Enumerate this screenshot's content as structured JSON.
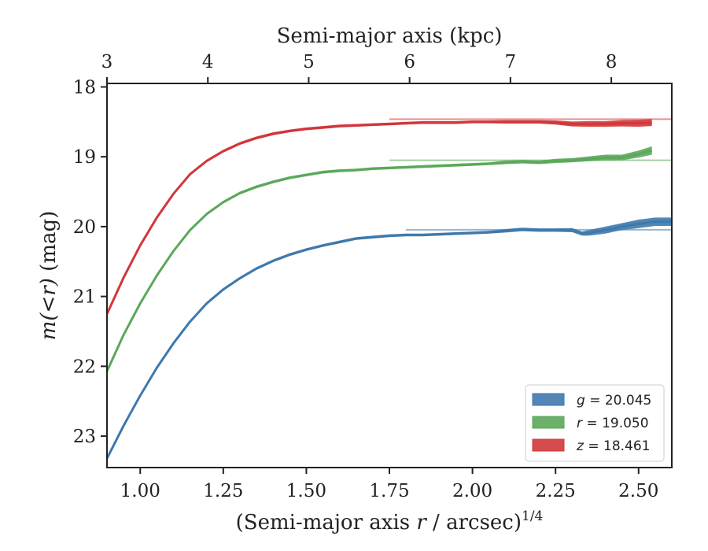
{
  "chart_data": {
    "type": "line",
    "xlabel": "(Semi-major axis r / arcsec)^{1/4}",
    "xlabel_parts": {
      "pre": "(Semi-major axis ",
      "var": "r",
      "mid": " / arcsec)",
      "sup": "1/4"
    },
    "ylabel": "m(<r) (mag)",
    "ylabel_parts": {
      "math": "m(<r)",
      "unit": " (mag)"
    },
    "top_xlabel": "Semi-major axis (kpc)",
    "xlim": [
      0.9,
      2.6
    ],
    "ylim": [
      23.45,
      17.95
    ],
    "y_inverted": true,
    "xticks": [
      1.0,
      1.25,
      1.5,
      1.75,
      2.0,
      2.25,
      2.5
    ],
    "xtick_labels": [
      "1.00",
      "1.25",
      "1.50",
      "1.75",
      "2.00",
      "2.25",
      "2.50"
    ],
    "yticks": [
      18,
      19,
      20,
      21,
      22,
      23
    ],
    "ytick_labels": [
      "18",
      "19",
      "20",
      "21",
      "22",
      "23"
    ],
    "top_ticks_kpc": [
      3,
      4,
      5,
      6,
      7,
      8
    ],
    "top_tick_labels": [
      "3",
      "4",
      "5",
      "6",
      "7",
      "8"
    ],
    "top_kpc_at_x": {
      "x": [
        0.9,
        2.6
      ],
      "kpc": [
        3.0,
        8.6
      ]
    },
    "legend_position": "lower-right",
    "grid": false,
    "series": [
      {
        "name": "g = 20.045",
        "var": "g",
        "value": "20.045",
        "color": "#3e79ad",
        "asymptote": 20.045,
        "x": [
          0.9,
          0.95,
          1.0,
          1.05,
          1.1,
          1.15,
          1.2,
          1.25,
          1.3,
          1.35,
          1.4,
          1.45,
          1.5,
          1.55,
          1.6,
          1.65,
          1.7,
          1.75,
          1.8,
          1.85,
          1.9,
          1.95,
          2.0,
          2.05,
          2.1,
          2.15,
          2.2,
          2.25,
          2.3,
          2.33,
          2.35,
          2.4,
          2.45,
          2.5,
          2.55,
          2.6
        ],
        "y": [
          23.32,
          22.85,
          22.42,
          22.02,
          21.67,
          21.36,
          21.1,
          20.9,
          20.74,
          20.6,
          20.49,
          20.4,
          20.33,
          20.27,
          20.22,
          20.17,
          20.15,
          20.13,
          20.12,
          20.12,
          20.11,
          20.1,
          20.09,
          20.08,
          20.06,
          20.04,
          20.05,
          20.05,
          20.05,
          20.1,
          20.09,
          20.05,
          20.0,
          19.96,
          19.93,
          19.93
        ],
        "band": [
          0.02,
          0.02,
          0.02,
          0.02,
          0.02,
          0.02,
          0.02,
          0.02,
          0.02,
          0.02,
          0.02,
          0.02,
          0.02,
          0.02,
          0.02,
          0.02,
          0.02,
          0.02,
          0.02,
          0.02,
          0.02,
          0.02,
          0.02,
          0.02,
          0.025,
          0.025,
          0.025,
          0.025,
          0.03,
          0.03,
          0.04,
          0.05,
          0.05,
          0.06,
          0.06,
          0.06
        ]
      },
      {
        "name": "r = 19.050",
        "var": "r",
        "value": "19.050",
        "color": "#5ba85a",
        "asymptote": 19.05,
        "x": [
          0.9,
          0.95,
          1.0,
          1.05,
          1.1,
          1.15,
          1.2,
          1.25,
          1.3,
          1.35,
          1.4,
          1.45,
          1.5,
          1.55,
          1.6,
          1.65,
          1.7,
          1.75,
          1.8,
          1.85,
          1.9,
          1.95,
          2.0,
          2.05,
          2.1,
          2.15,
          2.2,
          2.25,
          2.3,
          2.35,
          2.4,
          2.45,
          2.5,
          2.54
        ],
        "y": [
          22.07,
          21.55,
          21.1,
          20.7,
          20.35,
          20.05,
          19.82,
          19.65,
          19.52,
          19.43,
          19.36,
          19.3,
          19.26,
          19.22,
          19.2,
          19.19,
          19.17,
          19.16,
          19.15,
          19.14,
          19.13,
          19.12,
          19.11,
          19.1,
          19.08,
          19.07,
          19.08,
          19.06,
          19.05,
          19.03,
          19.01,
          19.01,
          18.96,
          18.91
        ],
        "band": [
          0.02,
          0.02,
          0.02,
          0.02,
          0.02,
          0.02,
          0.02,
          0.02,
          0.02,
          0.02,
          0.02,
          0.02,
          0.02,
          0.02,
          0.02,
          0.02,
          0.02,
          0.02,
          0.02,
          0.02,
          0.02,
          0.02,
          0.02,
          0.02,
          0.025,
          0.025,
          0.025,
          0.03,
          0.03,
          0.035,
          0.04,
          0.04,
          0.05,
          0.06
        ]
      },
      {
        "name": "z = 18.461",
        "var": "z",
        "value": "18.461",
        "color": "#d1373a",
        "asymptote": 18.461,
        "x": [
          0.9,
          0.95,
          1.0,
          1.05,
          1.1,
          1.15,
          1.2,
          1.25,
          1.3,
          1.35,
          1.4,
          1.45,
          1.5,
          1.55,
          1.6,
          1.65,
          1.7,
          1.75,
          1.8,
          1.85,
          1.9,
          1.95,
          2.0,
          2.05,
          2.1,
          2.15,
          2.2,
          2.25,
          2.3,
          2.35,
          2.4,
          2.45,
          2.5,
          2.54
        ],
        "y": [
          21.25,
          20.73,
          20.27,
          19.87,
          19.53,
          19.25,
          19.06,
          18.92,
          18.81,
          18.73,
          18.67,
          18.63,
          18.6,
          18.58,
          18.56,
          18.55,
          18.54,
          18.53,
          18.52,
          18.51,
          18.51,
          18.51,
          18.5,
          18.5,
          18.5,
          18.5,
          18.5,
          18.51,
          18.53,
          18.53,
          18.53,
          18.52,
          18.52,
          18.51
        ],
        "band": [
          0.02,
          0.02,
          0.02,
          0.02,
          0.02,
          0.02,
          0.02,
          0.02,
          0.02,
          0.02,
          0.02,
          0.02,
          0.02,
          0.02,
          0.02,
          0.02,
          0.02,
          0.02,
          0.02,
          0.02,
          0.02,
          0.02,
          0.02,
          0.02,
          0.025,
          0.025,
          0.025,
          0.03,
          0.035,
          0.04,
          0.04,
          0.045,
          0.05,
          0.05
        ]
      }
    ]
  }
}
